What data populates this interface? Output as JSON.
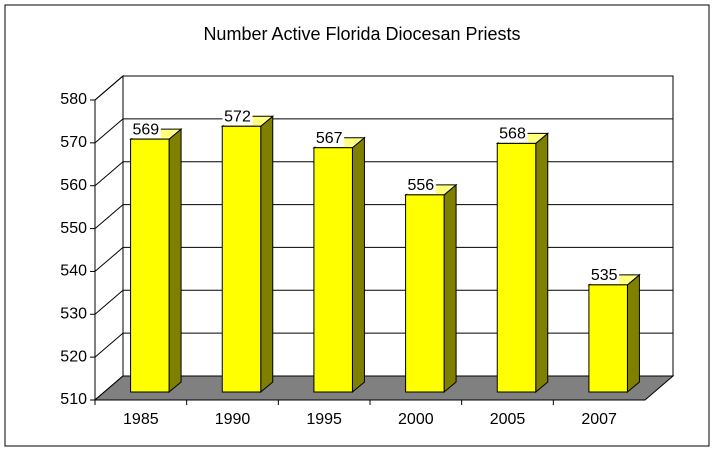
{
  "chart_data": {
    "type": "bar3d",
    "title": "Number Active Florida Diocesan Priests",
    "categories": [
      "1985",
      "1990",
      "1995",
      "2000",
      "2005",
      "2007"
    ],
    "values": [
      569,
      572,
      567,
      556,
      568,
      535
    ],
    "color": "#ffff00",
    "side_color": "#808000",
    "floor_color": "#808080",
    "ylim": [
      510,
      580
    ],
    "yticks": [
      510,
      520,
      530,
      540,
      550,
      560,
      570,
      580
    ],
    "grid": true
  }
}
